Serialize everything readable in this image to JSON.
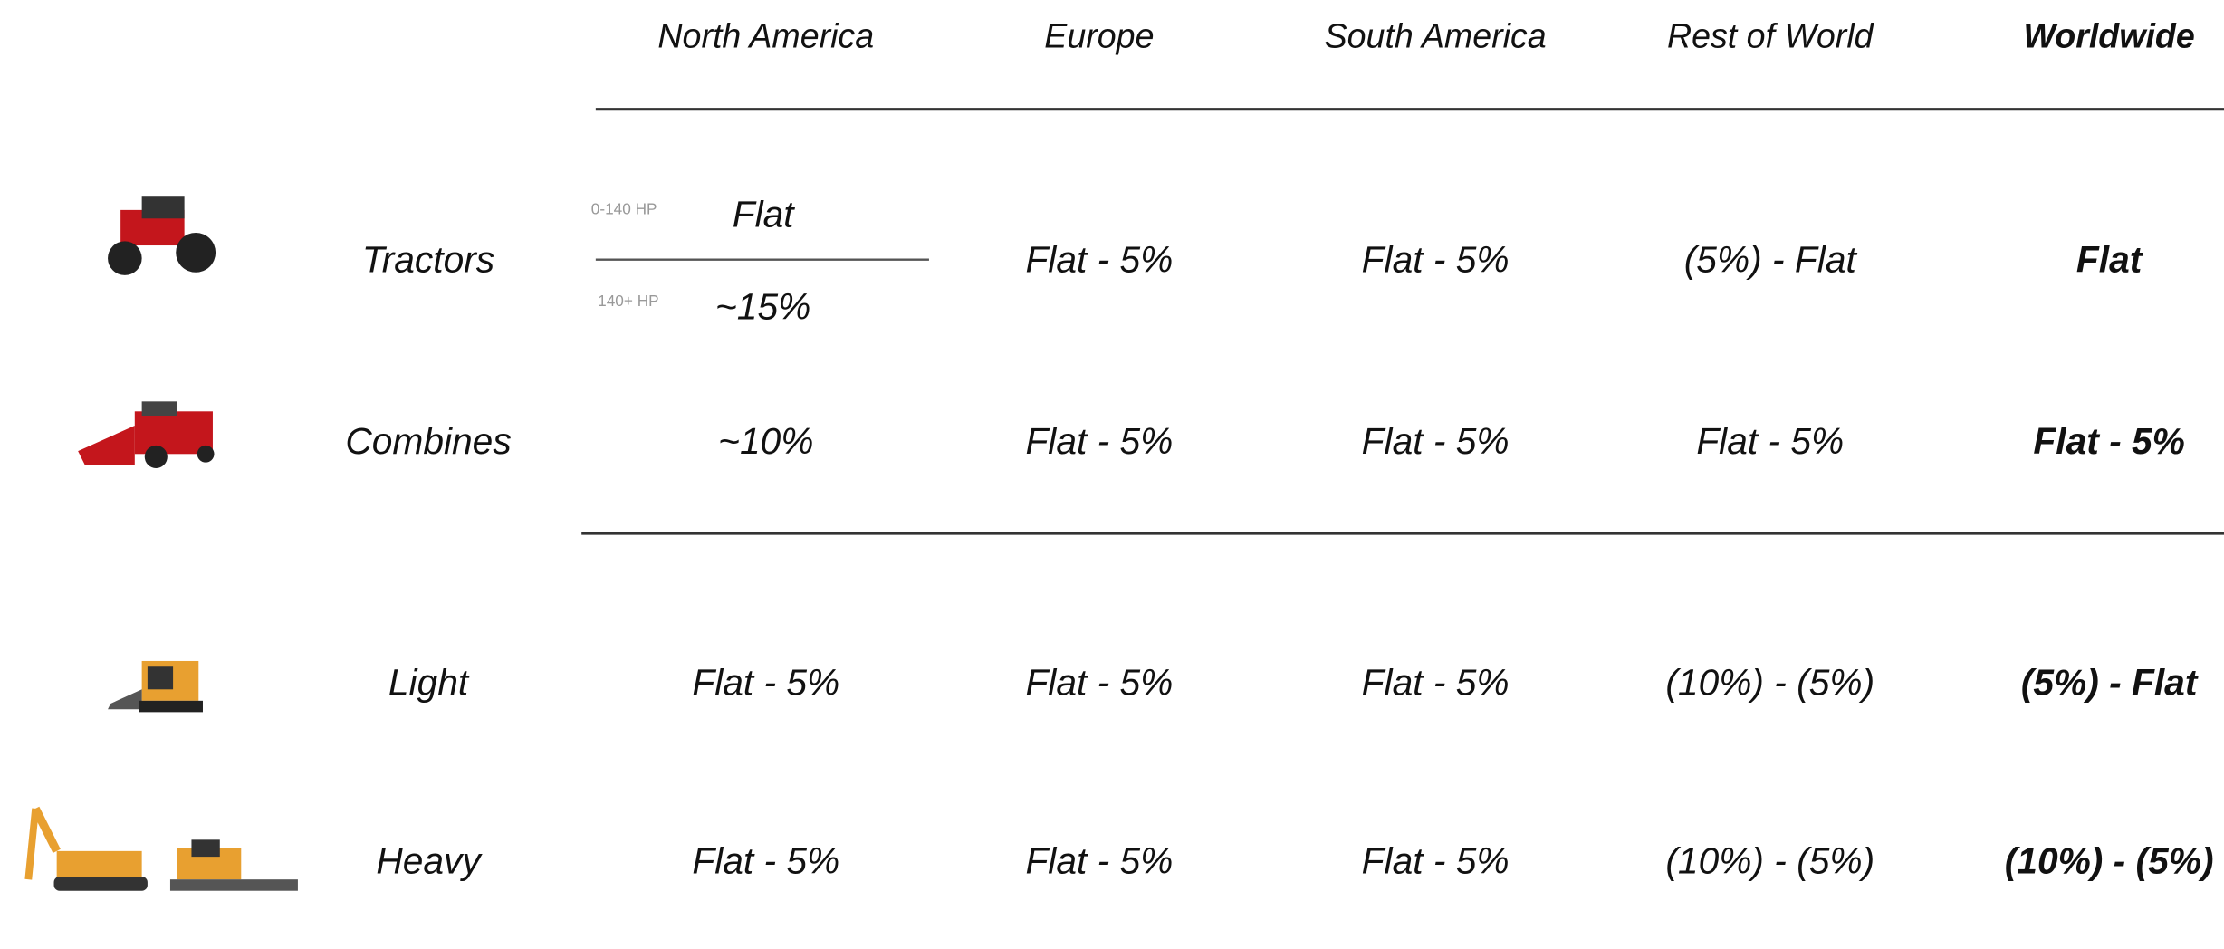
{
  "table": {
    "columns": [
      "North America",
      "Europe",
      "South America",
      "Rest of World",
      "Worldwide"
    ],
    "rows": [
      {
        "label": "Tractors",
        "cells": [
          {
            "segments": [
              {
                "label": "0-140 HP",
                "value": "Flat"
              },
              {
                "label": "140+ HP",
                "value": "~15%"
              }
            ]
          },
          "Flat - 5%",
          "Flat - 5%",
          "(5%) - Flat",
          "Flat"
        ]
      },
      {
        "label": "Combines",
        "cells": [
          "~10%",
          "Flat - 5%",
          "Flat - 5%",
          "Flat - 5%",
          "Flat - 5%"
        ]
      },
      {
        "label": "Light",
        "cells": [
          "Flat - 5%",
          "Flat - 5%",
          "Flat - 5%",
          "(10%) - (5%)",
          "(5%) - Flat"
        ]
      },
      {
        "label": "Heavy",
        "cells": [
          "Flat - 5%",
          "Flat - 5%",
          "Flat - 5%",
          "(10%) - (5%)",
          "(10%) - (5%)"
        ]
      }
    ]
  }
}
